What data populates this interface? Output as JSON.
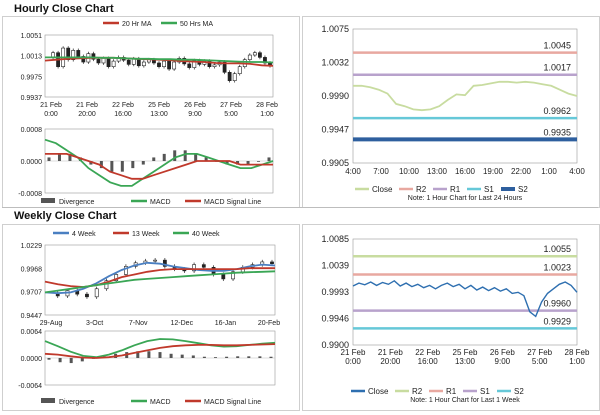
{
  "titles": {
    "hourly": "Hourly Close Chart",
    "weekly": "Weekly Close Chart"
  },
  "chart_data": [
    {
      "id": "hourly_price",
      "type": "line",
      "legend": [
        "20 Hr MA",
        "50 Hrs MA"
      ],
      "y_ticks": [
        "1.0051",
        "1.0013",
        "0.9975",
        "0.9937"
      ],
      "ylim": [
        0.9925,
        1.0058
      ],
      "x_ticks": [
        [
          "21 Feb",
          "0:00"
        ],
        [
          "21 Feb",
          "20:00"
        ],
        [
          "22 Feb",
          "16:00"
        ],
        [
          "25 Feb",
          "13:00"
        ],
        [
          "26 Feb",
          "9:00"
        ],
        [
          "27 Feb",
          "5:00"
        ],
        [
          "28 Feb",
          "1:00"
        ]
      ],
      "colors": {
        "ma20": "#c0392b",
        "ma50": "#3aa655",
        "candle": "#222222"
      },
      "series": [
        {
          "name": "20 Hr MA",
          "values": [
            1.0003,
            1.0005,
            1.0007,
            1.0008,
            1.0009,
            1.0009,
            1.0009,
            1.0008,
            1.0007,
            1.0006,
            1.0005,
            1.0004,
            1.0002,
            1.0001,
            1.0,
            0.9998,
            0.9997,
            0.9997,
            0.9996,
            0.9993,
            0.9992
          ]
        },
        {
          "name": "50 Hrs MA",
          "values": [
            1.001,
            1.001,
            1.001,
            1.001,
            1.001,
            1.0009,
            1.0009,
            1.0008,
            1.0007,
            1.0007,
            1.0006,
            1.0006,
            1.0005,
            1.0005,
            1.0004,
            1.0003,
            1.0002,
            1.0001,
            1.0,
            1.0,
            0.9999
          ]
        }
      ],
      "candles": [
        1.001,
        1.002,
        0.999,
        1.003,
        1.0005,
        1.0025,
        1.0012,
        1.0,
        1.0018,
        1.0006,
        0.9998,
        1.0008,
        0.999,
        1.0002,
        1.001,
        1.0004,
        0.9995,
        1.0007,
        0.9992,
        1.0,
        1.0005,
        0.9998,
        0.999,
        1.0002,
        0.9985,
        1.0,
        1.0008,
        0.9996,
        0.9988,
        1.0003,
        0.9995,
        1.0002,
        0.999,
        0.9994,
        1.0,
        0.9978,
        0.996,
        0.9975,
        0.999,
        1.0005,
        1.0015,
        1.002,
        1.001,
        0.9998,
        0.9992
      ]
    },
    {
      "id": "hourly_macd",
      "type": "line",
      "y_ticks": [
        "0.0008",
        "0.0000",
        "-0.0008"
      ],
      "ylim": [
        -0.0009,
        0.0009
      ],
      "legend": [
        "Divergence",
        "MACD",
        "MACD Signal Line"
      ],
      "colors": {
        "divergence": "#555555",
        "macd": "#3aa655",
        "signal": "#c0392b"
      },
      "series": [
        {
          "name": "MACD",
          "values": [
            0.0006,
            0.0005,
            0.0003,
            0.0001,
            -0.0002,
            -0.0004,
            -0.0006,
            -0.0007,
            -0.0007,
            -0.0005,
            -0.0003,
            -0.0001,
            0.0001,
            0.0002,
            0.0002,
            0.0001,
            0.0,
            -0.0001,
            -0.0002,
            -0.0002,
            -0.0001,
            0.0
          ]
        },
        {
          "name": "MACD Signal Line",
          "values": [
            0.0002,
            0.0002,
            0.0002,
            0.0001,
            0.0,
            -0.0001,
            -0.0003,
            -0.0004,
            -0.0005,
            -0.0005,
            -0.0004,
            -0.0003,
            -0.0002,
            -0.0001,
            0.0,
            0.0,
            0.0,
            0.0,
            -0.0001,
            -0.0001,
            -0.0001,
            -0.0001
          ]
        }
      ],
      "divergence": [
        0.0001,
        0.0002,
        0.0002,
        0.0001,
        -0.0001,
        -0.0002,
        -0.0003,
        -0.0003,
        -0.0002,
        -0.0001,
        0.0001,
        0.0002,
        0.0003,
        0.0003,
        0.0002,
        0.0001,
        0.0,
        -0.0001,
        -0.0001,
        -0.0001,
        0.0,
        0.0001
      ]
    },
    {
      "id": "hourly_sr",
      "type": "line",
      "y_ticks": [
        "1.0075",
        "1.0032",
        "0.9990",
        "0.9947",
        "0.9905"
      ],
      "ylim": [
        0.9905,
        1.0075
      ],
      "x_ticks": [
        "4:00",
        "7:00",
        "10:00",
        "13:00",
        "16:00",
        "19:00",
        "22:00",
        "1:00",
        "4:00"
      ],
      "legend": [
        "Close",
        "R2",
        "R1",
        "S1",
        "S2"
      ],
      "note": "Note: 1 Hour Chart for Last 24 Hours",
      "colors": {
        "close": "#c8dca0",
        "r2": "#e8a8a0",
        "r1": "#b8a2cc",
        "s1": "#66c8d8",
        "s2": "#2e5f9e"
      },
      "levels": [
        {
          "name": "R2",
          "value": 1.0045,
          "label": "1.0045"
        },
        {
          "name": "R1",
          "value": 1.0017,
          "label": "1.0017"
        },
        {
          "name": "S1",
          "value": 0.9962,
          "label": "0.9962"
        },
        {
          "name": "S2",
          "value": 0.9935,
          "label": "0.9935"
        }
      ],
      "series": [
        {
          "name": "Close",
          "values": [
            1.0003,
            1.0003,
            1.0001,
            0.9998,
            0.9993,
            0.998,
            0.9977,
            0.9973,
            0.9972,
            0.9973,
            0.9977,
            0.9985,
            0.9992,
            0.9991,
            1.0003,
            1.0004,
            1.0006,
            1.0008,
            1.0008,
            1.0007,
            1.0008,
            1.0007,
            1.0005,
            1.0003,
            0.9998,
            0.9993,
            0.999
          ]
        }
      ]
    },
    {
      "id": "weekly_price",
      "type": "line",
      "legend": [
        "4 Week",
        "13 Week",
        "40 Week"
      ],
      "y_ticks": [
        "1.0229",
        "0.9968",
        "0.9707",
        "0.9447"
      ],
      "ylim": [
        0.9447,
        1.0229
      ],
      "x_ticks": [
        "29-Aug",
        "3-Oct",
        "7-Nov",
        "12-Dec",
        "16-Jan",
        "20-Feb"
      ],
      "colors": {
        "w4": "#4a7fc1",
        "w13": "#c0392b",
        "w40": "#3aa655",
        "candle": "#222222"
      },
      "series": [
        {
          "name": "4 Week",
          "values": [
            0.97,
            0.969,
            0.97,
            0.974,
            0.98,
            0.988,
            0.995,
            1.0,
            1.003,
            1.002,
            0.999,
            0.997,
            0.995,
            0.994,
            0.994,
            0.996,
            0.999,
            1.001,
            1.0
          ]
        },
        {
          "name": "13 Week",
          "values": [
            0.982,
            0.979,
            0.977,
            0.976,
            0.978,
            0.982,
            0.987,
            0.99,
            0.993,
            0.995,
            0.996,
            0.996,
            0.996,
            0.996,
            0.996,
            0.996,
            0.997,
            0.997,
            0.997
          ]
        },
        {
          "name": "40 Week",
          "values": [
            0.97,
            0.972,
            0.974,
            0.976,
            0.978,
            0.98,
            0.982,
            0.984,
            0.985,
            0.986,
            0.987,
            0.988,
            0.989,
            0.99,
            0.991,
            0.992,
            0.9925,
            0.993,
            0.9935
          ]
        }
      ],
      "candles": [
        0.969,
        0.966,
        0.972,
        0.968,
        0.965,
        0.974,
        0.983,
        0.99,
        0.999,
        1.003,
        1.005,
        1.006,
        0.999,
        0.996,
        0.994,
        1.001,
        0.998,
        0.99,
        0.985,
        0.993,
        0.998,
        1.001,
        1.004,
        1.002
      ]
    },
    {
      "id": "weekly_macd",
      "type": "line",
      "y_ticks": [
        "0.0064",
        "0.0000",
        "-0.0064"
      ],
      "ylim": [
        -0.0064,
        0.0064
      ],
      "legend": [
        "Divergence",
        "MACD",
        "MACD Signal Line"
      ],
      "colors": {
        "divergence": "#555555",
        "macd": "#3aa655",
        "signal": "#c0392b"
      },
      "series": [
        {
          "name": "MACD",
          "values": [
            0.004,
            0.0028,
            0.0015,
            0.0005,
            0.0002,
            0.0008,
            0.0018,
            0.003,
            0.004,
            0.0045,
            0.0044,
            0.004,
            0.0035,
            0.003,
            0.0027,
            0.0028,
            0.0031,
            0.0034,
            0.0036
          ]
        },
        {
          "name": "MACD Signal Line",
          "values": [
            0.001,
            0.0008,
            0.0004,
            0.0001,
            0.0,
            0.0002,
            0.0006,
            0.0012,
            0.0018,
            0.0024,
            0.0028,
            0.003,
            0.0031,
            0.0031,
            0.003,
            0.003,
            0.0031,
            0.0032,
            0.0033
          ]
        }
      ],
      "divergence": [
        -0.0004,
        -0.001,
        -0.0012,
        -0.0008,
        -0.0002,
        0.0004,
        0.001,
        0.0014,
        0.0016,
        0.0016,
        0.0014,
        0.001,
        0.0008,
        0.0006,
        0.0003,
        0.0002,
        0.0003,
        0.0004,
        0.0004,
        0.0004,
        0.0003
      ]
    },
    {
      "id": "weekly_sr",
      "type": "line",
      "y_ticks": [
        "1.0085",
        "1.0039",
        "0.9993",
        "0.9946",
        "0.9900"
      ],
      "ylim": [
        0.99,
        1.0085
      ],
      "x_ticks": [
        [
          "21 Feb",
          "0:00"
        ],
        [
          "21 Feb",
          "20:00"
        ],
        [
          "22 Feb",
          "16:00"
        ],
        [
          "25 Feb",
          "13:00"
        ],
        [
          "26 Feb",
          "9:00"
        ],
        [
          "27 Feb",
          "5:00"
        ],
        [
          "28 Feb",
          "1:00"
        ]
      ],
      "legend": [
        "Close",
        "R2",
        "R1",
        "S1",
        "S2"
      ],
      "note": "Note: 1 Hour Chart for Last 1 Week",
      "colors": {
        "close": "#2e6fb0",
        "r2": "#c8dca0",
        "r1": "#e8a8a0",
        "s1": "#b8a2cc",
        "s2": "#66c8d8"
      },
      "levels": [
        {
          "name": "R2",
          "value": 1.0055,
          "label": "1.0055"
        },
        {
          "name": "R1",
          "value": 1.0023,
          "label": "1.0023"
        },
        {
          "name": "S1",
          "value": 0.996,
          "label": "0.9960"
        },
        {
          "name": "S2",
          "value": 0.9929,
          "label": "0.9929"
        }
      ],
      "series": [
        {
          "name": "Close",
          "values": [
            1.0003,
            1.0008,
            1.0005,
            1.001,
            1.0004,
            1.0009,
            1.0006,
            1.0012,
            1.0003,
            1.0008,
            1.0002,
            1.0006,
            1.0,
            1.0004,
            0.9998,
            1.0004,
            1.0008,
            1.0002,
            1.0006,
            0.9998,
            1.0004,
            0.9996,
            1.0001,
            0.9995,
            1.0,
            0.9994,
            0.9998,
            0.999,
            0.9992,
            0.9986,
            0.9958,
            0.995,
            0.9975,
            0.999,
            0.9998,
            1.0006,
            1.001,
            1.0004,
            0.9992
          ]
        }
      ]
    }
  ]
}
